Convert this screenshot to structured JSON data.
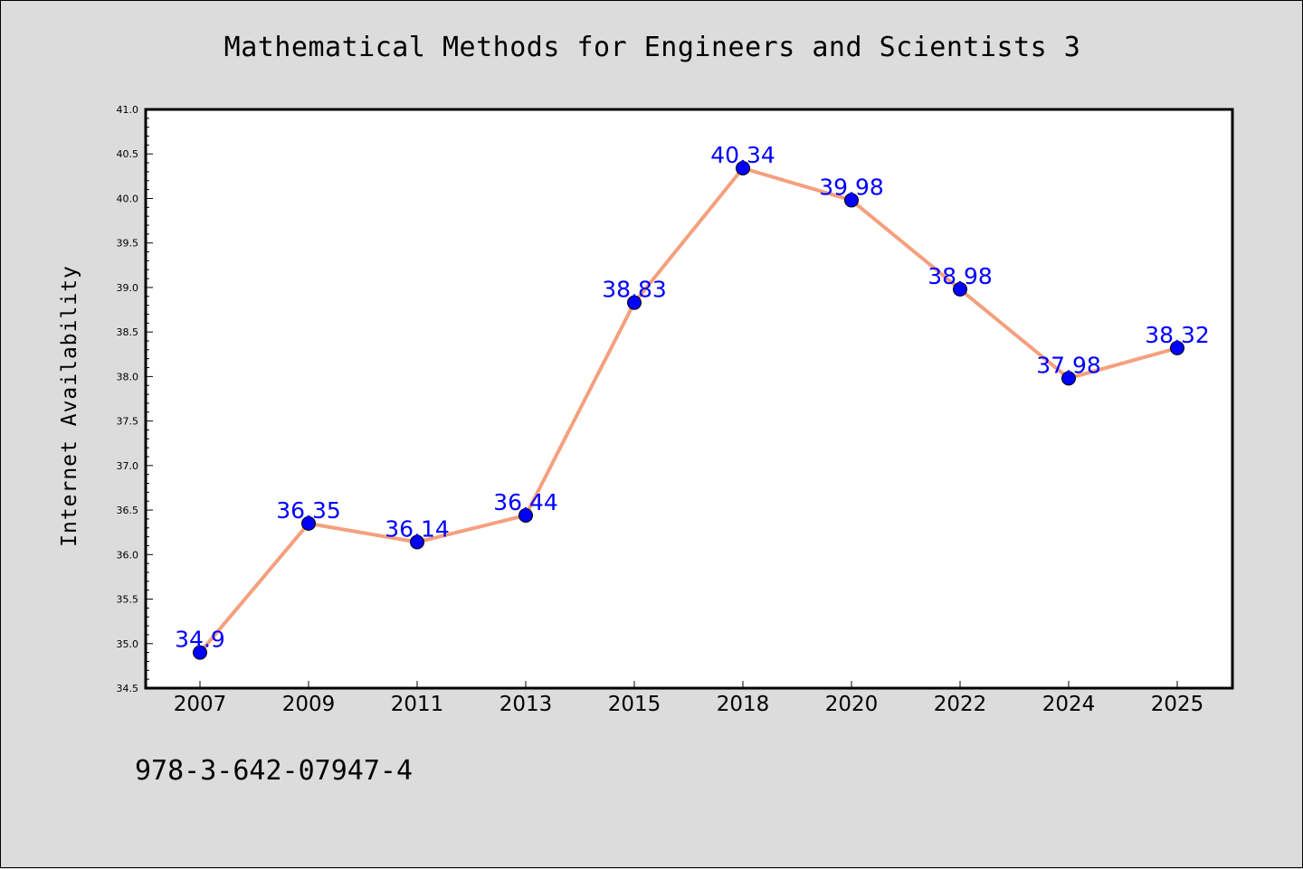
{
  "header": {
    "title": "Mathematical Methods for Engineers and Scientists 3"
  },
  "footer": {
    "isbn": "978-3-642-07947-4"
  },
  "colors": {
    "line": "#f4a07e",
    "marker": "#0000ff",
    "data_label": "#0000ff",
    "plot_background": "#ffffff",
    "page_background": "#dcdcdc"
  },
  "chart_data": {
    "type": "line",
    "title": "Mathematical Methods for Engineers and Scientists 3",
    "xlabel": "",
    "ylabel": "Internet Availability",
    "categories": [
      "2007",
      "2009",
      "2011",
      "2013",
      "2015",
      "2018",
      "2020",
      "2022",
      "2024",
      "2025"
    ],
    "series": [
      {
        "values": [
          34.9,
          36.35,
          36.14,
          36.44,
          38.83,
          40.34,
          39.98,
          38.98,
          37.98,
          38.32
        ],
        "labels": [
          "34.9",
          "36.35",
          "36.14",
          "36.44",
          "38.83",
          "40.34",
          "39.98",
          "38.98",
          "37.98",
          "38.32"
        ]
      }
    ],
    "ylim": [
      34.5,
      41.0
    ],
    "yticks": [
      "34.5",
      "35.0",
      "35.5",
      "36.0",
      "36.5",
      "37.0",
      "37.5",
      "38.0",
      "38.5",
      "39.0",
      "39.5",
      "40.0",
      "40.5",
      "41.0"
    ],
    "grid": false,
    "legend": "none"
  }
}
